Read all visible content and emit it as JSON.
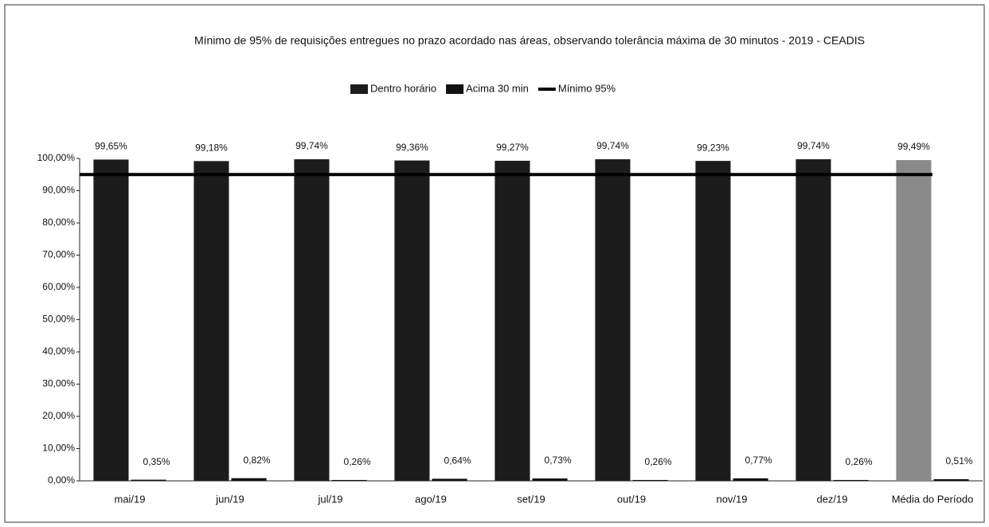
{
  "chart_data": {
    "type": "bar",
    "title": "Mínimo de 95% de requisições entregues no prazo acordado nas áreas, observando tolerância máxima de 30 minutos - 2019 - CEADIS",
    "categories": [
      "mai/19",
      "jun/19",
      "jul/19",
      "ago/19",
      "set/19",
      "out/19",
      "nov/19",
      "dez/19",
      "Média do Período"
    ],
    "series": [
      {
        "name": "Dentro horário",
        "type": "bar",
        "color": "#1c1c1c",
        "colors": [
          "#1c1c1c",
          "#1c1c1c",
          "#1c1c1c",
          "#1c1c1c",
          "#1c1c1c",
          "#1c1c1c",
          "#1c1c1c",
          "#1c1c1c",
          "#8a8a8a"
        ],
        "values": [
          99.65,
          99.18,
          99.74,
          99.36,
          99.27,
          99.74,
          99.23,
          99.74,
          99.49
        ],
        "value_labels": [
          "99,65%",
          "99,18%",
          "99,74%",
          "99,36%",
          "99,27%",
          "99,74%",
          "99,23%",
          "99,74%",
          "99,49%"
        ]
      },
      {
        "name": "Acima 30 min",
        "type": "bar",
        "color": "#111111",
        "values": [
          0.35,
          0.82,
          0.26,
          0.64,
          0.73,
          0.26,
          0.77,
          0.26,
          0.51
        ],
        "value_labels": [
          "0,35%",
          "0,82%",
          "0,26%",
          "0,64%",
          "0,73%",
          "0,26%",
          "0,77%",
          "0,26%",
          "0,51%"
        ]
      },
      {
        "name": "Mínimo 95%",
        "type": "line",
        "color": "#000000",
        "values": [
          95,
          95,
          95,
          95,
          95,
          95,
          95,
          95,
          95
        ]
      }
    ],
    "ylim": [
      0,
      100
    ],
    "yticks": [
      {
        "value": 0,
        "label": "0,00%"
      },
      {
        "value": 10,
        "label": "10,00%"
      },
      {
        "value": 20,
        "label": "20,00%"
      },
      {
        "value": 30,
        "label": "30,00%"
      },
      {
        "value": 40,
        "label": "40,00%"
      },
      {
        "value": 50,
        "label": "50,00%"
      },
      {
        "value": 60,
        "label": "60,00%"
      },
      {
        "value": 70,
        "label": "70,00%"
      },
      {
        "value": 80,
        "label": "80,00%"
      },
      {
        "value": 90,
        "label": "90,00%"
      },
      {
        "value": 100,
        "label": "100,00%"
      }
    ],
    "grid": false,
    "legend": "top"
  }
}
